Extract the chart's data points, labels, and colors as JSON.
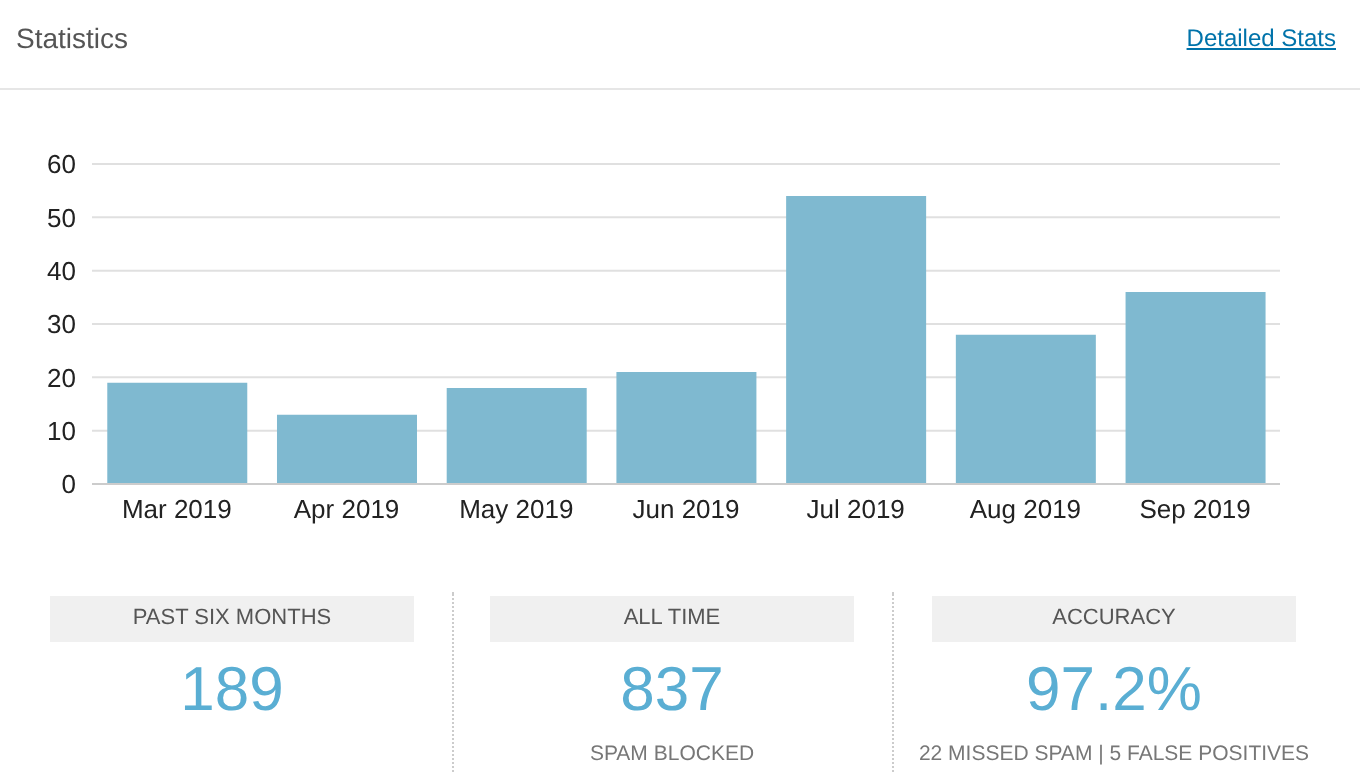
{
  "chart_data": {
    "type": "bar",
    "title": "Statistics",
    "categories": [
      "Mar 2019",
      "Apr 2019",
      "May 2019",
      "Jun 2019",
      "Jul 2019",
      "Aug 2019",
      "Sep 2019"
    ],
    "values": [
      19,
      13,
      18,
      21,
      54,
      28,
      36
    ],
    "color": "#7fb9d0",
    "ylim": [
      0,
      60
    ],
    "yticks": [
      0,
      10,
      20,
      30,
      40,
      50,
      60
    ],
    "grid": "y",
    "annotations": [
      "Detailed Stats",
      "PAST SIX MONTHS",
      "189",
      "ALL TIME",
      "837",
      "SPAM BLOCKED",
      "ACCURACY",
      "97.2%",
      "22 MISSED SPAM | 5 FALSE POSITIVES"
    ]
  }
}
